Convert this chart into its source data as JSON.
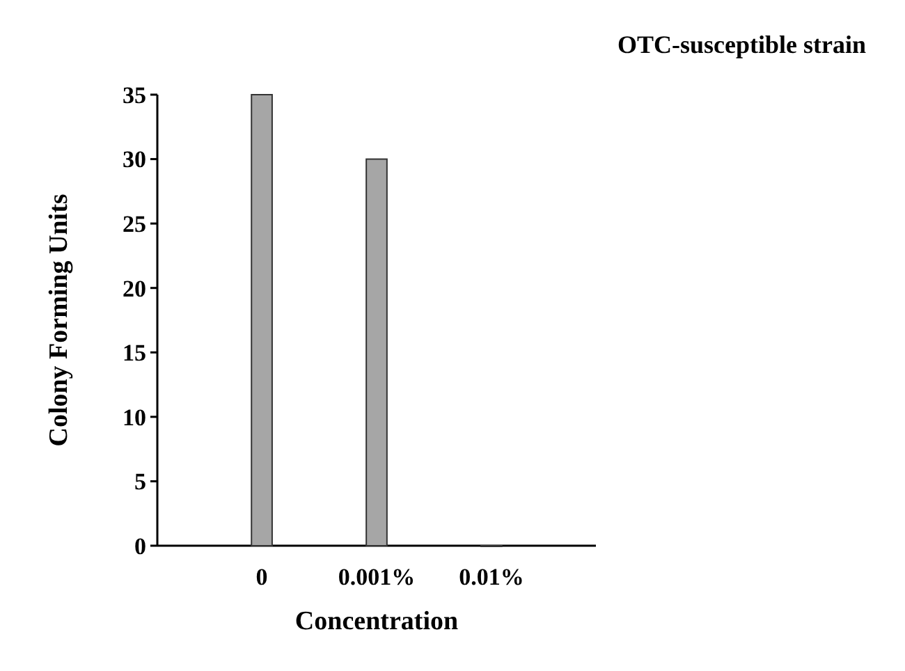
{
  "chart_data": {
    "type": "bar",
    "title": "OTC-susceptible strain",
    "xlabel": "Concentration",
    "ylabel": "Colony Forming Units",
    "categories": [
      "0",
      "0.001%",
      "0.01%"
    ],
    "values": [
      35,
      30,
      0
    ],
    "color": "#a6a6a6",
    "ylim": [
      0,
      35
    ],
    "yticks": [
      0,
      5,
      10,
      15,
      20,
      25,
      30,
      35
    ],
    "grid": false
  }
}
